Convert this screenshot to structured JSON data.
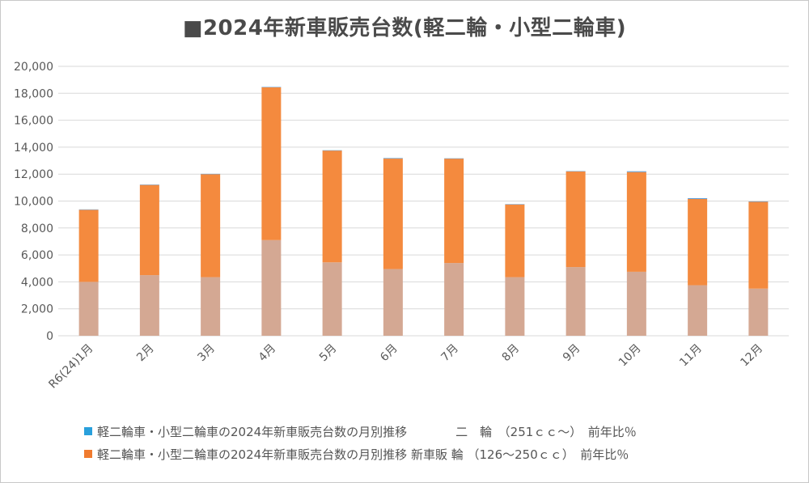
{
  "chart_data": {
    "type": "bar",
    "stacked": true,
    "title": "■2024年新車販売台数(軽二輪・小型二輪車)",
    "categories": [
      "R6(24)1月",
      "2月",
      "3月",
      "4月",
      "5月",
      "6月",
      "7月",
      "8月",
      "9月",
      "10月",
      "11月",
      "12月"
    ],
    "series": [
      {
        "color": "#d4a893",
        "values": [
          4000,
          4500,
          4350,
          7100,
          5450,
          4950,
          5400,
          4350,
          5100,
          4750,
          3750,
          3500
        ]
      },
      {
        "color": "#f48a3e",
        "values": [
          5350,
          6700,
          7650,
          11350,
          8300,
          8200,
          7750,
          5400,
          7100,
          7400,
          6400,
          6450
        ]
      },
      {
        "color": "#5b9bd5",
        "values": [
          30,
          20,
          20,
          20,
          20,
          40,
          20,
          20,
          20,
          60,
          60,
          20
        ]
      }
    ],
    "ylim": [
      0,
      20000
    ],
    "yticks": [
      "0",
      "2,000",
      "4,000",
      "6,000",
      "8,000",
      "10,000",
      "12,000",
      "14,000",
      "16,000",
      "18,000",
      "20,000"
    ],
    "grid": true,
    "legend_position": "bottom"
  },
  "legend": [
    {
      "label": "軽二輪車・小型二輪車の2024年新車販売台数の月別推移　　　　二　輪　（251ｃｃ～）　前年比％",
      "color": "#29a0dc"
    },
    {
      "label": "軽二輪車・小型二輪車の2024年新車販売台数の月別推移 新車販 輪 （126～250ｃｃ）　前年比％",
      "color": "#f07b2f"
    }
  ]
}
